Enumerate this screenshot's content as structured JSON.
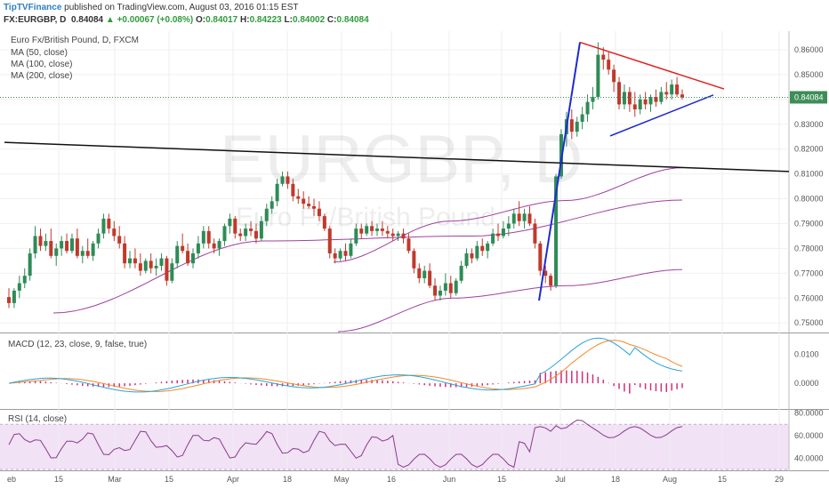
{
  "header": {
    "author": "TipTVFinance",
    "published_text": "published on TradingView.com, August 03, 2016 01:15 EST",
    "symbol": "FX:EURGBP, D",
    "last": "0.84084",
    "change": "+0.00067 (+0.08%)",
    "open_label": "O:",
    "open": "0.84017",
    "high_label": "H:",
    "high": "0.84223",
    "low_label": "L:",
    "low": "0.84002",
    "close_label": "C:",
    "close": "0.84084"
  },
  "legend": {
    "title": "Euro Fx/British Pound, D, FXCM",
    "ma50": "MA (50, close)",
    "ma100": "MA (100, close)",
    "ma200": "MA (200, close)"
  },
  "watermark": {
    "symbol": "EURGBP, D",
    "name": "Euro Fx/British Pound"
  },
  "colors": {
    "up": "#2e8b57",
    "down": "#c0392b",
    "ma": "#a040a0",
    "trend_blue": "#1f2bd1",
    "trend_red": "#e02020",
    "trend_black": "#111111",
    "macd": "#2aa3d8",
    "signal": "#f08a2a",
    "hist": "#d0307a",
    "rsi": "#8a3a8a",
    "rsi_band": "#f1e2f6",
    "price_label": "#3d8d57"
  },
  "chart_data": [
    {
      "type": "candlestick",
      "ylim": [
        0.7465,
        0.8675
      ],
      "yticks": [
        "0.86000",
        "0.85000",
        "0.84000",
        "0.83000",
        "0.82000",
        "0.81000",
        "0.80000",
        "0.79000",
        "0.78000",
        "0.77000",
        "0.76000",
        "0.75000"
      ],
      "last_price_label": "0.84084",
      "ohlc": [
        [
          0.7604,
          0.764,
          0.756,
          0.758
        ],
        [
          0.758,
          0.764,
          0.756,
          0.763
        ],
        [
          0.763,
          0.769,
          0.76,
          0.766
        ],
        [
          0.766,
          0.772,
          0.764,
          0.769
        ],
        [
          0.769,
          0.78,
          0.767,
          0.778
        ],
        [
          0.778,
          0.789,
          0.776,
          0.785
        ],
        [
          0.785,
          0.788,
          0.779,
          0.781
        ],
        [
          0.781,
          0.786,
          0.779,
          0.783
        ],
        [
          0.783,
          0.788,
          0.776,
          0.777
        ],
        [
          0.777,
          0.782,
          0.773,
          0.78
        ],
        [
          0.78,
          0.785,
          0.777,
          0.783
        ],
        [
          0.783,
          0.786,
          0.778,
          0.779
        ],
        [
          0.779,
          0.786,
          0.778,
          0.784
        ],
        [
          0.784,
          0.788,
          0.776,
          0.777
        ],
        [
          0.777,
          0.781,
          0.774,
          0.779
        ],
        [
          0.779,
          0.784,
          0.776,
          0.777
        ],
        [
          0.777,
          0.783,
          0.775,
          0.782
        ],
        [
          0.782,
          0.788,
          0.78,
          0.786
        ],
        [
          0.786,
          0.794,
          0.784,
          0.792
        ],
        [
          0.792,
          0.794,
          0.786,
          0.788
        ],
        [
          0.788,
          0.791,
          0.783,
          0.785
        ],
        [
          0.785,
          0.789,
          0.78,
          0.782
        ],
        [
          0.782,
          0.785,
          0.772,
          0.774
        ],
        [
          0.774,
          0.779,
          0.772,
          0.776
        ],
        [
          0.776,
          0.78,
          0.772,
          0.774
        ],
        [
          0.774,
          0.778,
          0.769,
          0.771
        ],
        [
          0.771,
          0.776,
          0.77,
          0.775
        ],
        [
          0.775,
          0.778,
          0.77,
          0.772
        ],
        [
          0.772,
          0.776,
          0.769,
          0.773
        ],
        [
          0.773,
          0.778,
          0.771,
          0.776
        ],
        [
          0.776,
          0.777,
          0.765,
          0.767
        ],
        [
          0.767,
          0.776,
          0.766,
          0.774
        ],
        [
          0.774,
          0.783,
          0.772,
          0.781
        ],
        [
          0.781,
          0.786,
          0.778,
          0.779
        ],
        [
          0.779,
          0.782,
          0.773,
          0.774
        ],
        [
          0.774,
          0.78,
          0.772,
          0.778
        ],
        [
          0.778,
          0.785,
          0.776,
          0.782
        ],
        [
          0.782,
          0.789,
          0.78,
          0.787
        ],
        [
          0.787,
          0.789,
          0.78,
          0.782
        ],
        [
          0.782,
          0.784,
          0.778,
          0.78
        ],
        [
          0.78,
          0.784,
          0.777,
          0.783
        ],
        [
          0.783,
          0.79,
          0.781,
          0.789
        ],
        [
          0.789,
          0.794,
          0.786,
          0.792
        ],
        [
          0.792,
          0.793,
          0.784,
          0.786
        ],
        [
          0.786,
          0.788,
          0.783,
          0.785
        ],
        [
          0.785,
          0.79,
          0.783,
          0.788
        ],
        [
          0.788,
          0.791,
          0.785,
          0.787
        ],
        [
          0.787,
          0.79,
          0.782,
          0.784
        ],
        [
          0.784,
          0.793,
          0.783,
          0.791
        ],
        [
          0.791,
          0.798,
          0.789,
          0.796
        ],
        [
          0.796,
          0.801,
          0.794,
          0.799
        ],
        [
          0.799,
          0.808,
          0.797,
          0.806
        ],
        [
          0.806,
          0.811,
          0.805,
          0.809
        ],
        [
          0.809,
          0.811,
          0.804,
          0.806
        ],
        [
          0.806,
          0.808,
          0.799,
          0.801
        ],
        [
          0.801,
          0.804,
          0.798,
          0.8
        ],
        [
          0.8,
          0.803,
          0.796,
          0.798
        ],
        [
          0.798,
          0.801,
          0.796,
          0.797
        ],
        [
          0.797,
          0.8,
          0.793,
          0.796
        ],
        [
          0.796,
          0.799,
          0.791,
          0.793
        ],
        [
          0.793,
          0.794,
          0.787,
          0.788
        ],
        [
          0.788,
          0.789,
          0.776,
          0.778
        ],
        [
          0.778,
          0.78,
          0.774,
          0.776
        ],
        [
          0.776,
          0.78,
          0.775,
          0.779
        ],
        [
          0.779,
          0.782,
          0.775,
          0.777
        ],
        [
          0.777,
          0.784,
          0.776,
          0.782
        ],
        [
          0.782,
          0.79,
          0.781,
          0.788
        ],
        [
          0.788,
          0.79,
          0.784,
          0.786
        ],
        [
          0.786,
          0.79,
          0.785,
          0.789
        ],
        [
          0.789,
          0.791,
          0.785,
          0.787
        ],
        [
          0.787,
          0.79,
          0.785,
          0.788
        ],
        [
          0.788,
          0.791,
          0.785,
          0.787
        ],
        [
          0.787,
          0.789,
          0.784,
          0.786
        ],
        [
          0.786,
          0.788,
          0.783,
          0.785
        ],
        [
          0.785,
          0.787,
          0.783,
          0.786
        ],
        [
          0.786,
          0.788,
          0.782,
          0.784
        ],
        [
          0.784,
          0.786,
          0.778,
          0.779
        ],
        [
          0.779,
          0.78,
          0.77,
          0.772
        ],
        [
          0.772,
          0.774,
          0.766,
          0.768
        ],
        [
          0.768,
          0.773,
          0.766,
          0.771
        ],
        [
          0.771,
          0.774,
          0.764,
          0.765
        ],
        [
          0.765,
          0.768,
          0.759,
          0.761
        ],
        [
          0.761,
          0.765,
          0.759,
          0.763
        ],
        [
          0.763,
          0.77,
          0.761,
          0.766
        ],
        [
          0.766,
          0.769,
          0.76,
          0.762
        ],
        [
          0.762,
          0.768,
          0.761,
          0.767
        ],
        [
          0.767,
          0.775,
          0.766,
          0.773
        ],
        [
          0.773,
          0.78,
          0.772,
          0.778
        ],
        [
          0.778,
          0.78,
          0.774,
          0.776
        ],
        [
          0.776,
          0.783,
          0.775,
          0.781
        ],
        [
          0.781,
          0.784,
          0.777,
          0.779
        ],
        [
          0.779,
          0.783,
          0.776,
          0.782
        ],
        [
          0.782,
          0.788,
          0.781,
          0.786
        ],
        [
          0.786,
          0.79,
          0.783,
          0.785
        ],
        [
          0.785,
          0.791,
          0.784,
          0.788
        ],
        [
          0.788,
          0.793,
          0.785,
          0.79
        ],
        [
          0.79,
          0.796,
          0.788,
          0.794
        ],
        [
          0.794,
          0.799,
          0.789,
          0.791
        ],
        [
          0.791,
          0.796,
          0.788,
          0.794
        ],
        [
          0.794,
          0.797,
          0.789,
          0.79
        ],
        [
          0.79,
          0.792,
          0.78,
          0.782
        ],
        [
          0.782,
          0.783,
          0.769,
          0.771
        ],
        [
          0.771,
          0.773,
          0.766,
          0.769
        ],
        [
          0.769,
          0.77,
          0.763,
          0.765
        ],
        [
          0.765,
          0.81,
          0.764,
          0.809
        ],
        [
          0.809,
          0.828,
          0.808,
          0.826
        ],
        [
          0.826,
          0.835,
          0.821,
          0.832
        ],
        [
          0.832,
          0.836,
          0.824,
          0.827
        ],
        [
          0.827,
          0.833,
          0.825,
          0.831
        ],
        [
          0.831,
          0.837,
          0.828,
          0.834
        ],
        [
          0.834,
          0.842,
          0.831,
          0.839
        ],
        [
          0.839,
          0.845,
          0.836,
          0.841
        ],
        [
          0.841,
          0.863,
          0.84,
          0.858
        ],
        [
          0.858,
          0.861,
          0.852,
          0.856
        ],
        [
          0.856,
          0.859,
          0.85,
          0.852
        ],
        [
          0.852,
          0.854,
          0.843,
          0.847
        ],
        [
          0.847,
          0.849,
          0.836,
          0.838
        ],
        [
          0.838,
          0.846,
          0.836,
          0.843
        ],
        [
          0.843,
          0.845,
          0.835,
          0.838
        ],
        [
          0.838,
          0.843,
          0.833,
          0.836
        ],
        [
          0.836,
          0.842,
          0.834,
          0.84
        ],
        [
          0.84,
          0.843,
          0.836,
          0.838
        ],
        [
          0.838,
          0.842,
          0.835,
          0.841
        ],
        [
          0.841,
          0.844,
          0.837,
          0.839
        ],
        [
          0.839,
          0.845,
          0.838,
          0.843
        ],
        [
          0.843,
          0.847,
          0.84,
          0.842
        ],
        [
          0.842,
          0.848,
          0.84,
          0.846
        ],
        [
          0.846,
          0.849,
          0.841,
          0.842
        ],
        [
          0.842,
          0.844,
          0.84,
          0.8408
        ]
      ],
      "ma50": [
        0.7745,
        0.791,
        0.7993,
        0.8125
      ],
      "ma100": [
        0.754,
        0.783,
        0.785,
        0.7995
      ],
      "ma200": [
        0.7465,
        0.76,
        0.765,
        0.7715
      ]
    },
    {
      "type": "line",
      "title": "MACD (12, 23, close, 9, false, true)",
      "yticks": [
        "0.0100",
        "0.0000"
      ],
      "ylim": [
        -0.0085,
        0.0165
      ]
    },
    {
      "type": "line",
      "title": "RSI (14, close)",
      "yticks": [
        "80.0000",
        "60.0000",
        "40.0000"
      ],
      "ylim": [
        30,
        82
      ],
      "band": [
        30,
        70
      ]
    }
  ],
  "x_axis": {
    "labels": [
      "eb",
      "15",
      "Mar",
      "15",
      "Apr",
      "18",
      "May",
      "16",
      "Jun",
      "15",
      "Jul",
      "18",
      "Aug",
      "15",
      "29"
    ]
  }
}
